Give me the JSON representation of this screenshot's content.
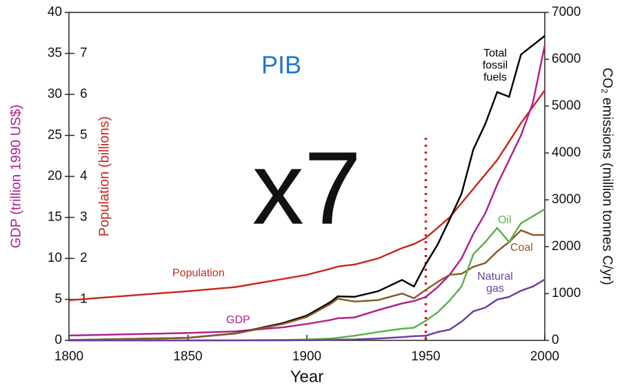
{
  "chart_data": {
    "type": "line",
    "x_label": "Year",
    "y_label": "GDP (trillion 1990 US$)",
    "y3_label": "Population (billions)",
    "y2_label": "CO₂ emissions (million tonnes C/yr)",
    "annotations": [
      "PIB",
      "x7"
    ],
    "vline": 1950,
    "xlim": [
      1800,
      2000
    ],
    "xticks": [
      1800,
      1850,
      1900,
      1950,
      2000
    ],
    "ylim": [
      0,
      40
    ],
    "yticks": [
      0,
      5,
      10,
      15,
      20,
      25,
      30,
      35,
      40
    ],
    "y3lim": [
      0,
      8
    ],
    "y3ticks": [
      1,
      2,
      3,
      4,
      5,
      6,
      7
    ],
    "y2lim": [
      0,
      7000
    ],
    "y2ticks": [
      0,
      1000,
      2000,
      3000,
      4000,
      5000,
      6000,
      7000
    ],
    "x": [
      1800,
      1850,
      1870,
      1890,
      1900,
      1910,
      1913,
      1920,
      1930,
      1940,
      1945,
      1950,
      1955,
      1960,
      1965,
      1970,
      1975,
      1980,
      1985,
      1990,
      1995,
      2000
    ],
    "series": [
      {
        "name": "Population",
        "color": "#c8281e",
        "axis": "y3",
        "values": [
          0.98,
          1.2,
          1.3,
          1.5,
          1.6,
          1.75,
          1.8,
          1.85,
          2.0,
          2.25,
          2.35,
          2.5,
          2.75,
          3.0,
          3.35,
          3.7,
          4.05,
          4.4,
          4.85,
          5.3,
          5.7,
          6.1
        ]
      },
      {
        "name": "GDP",
        "color": "#b0208f",
        "values": [
          0.6,
          0.9,
          1.1,
          1.6,
          2,
          2.5,
          2.7,
          2.8,
          3.7,
          4.5,
          4.8,
          5.3,
          6.5,
          8,
          10,
          13,
          15.5,
          19,
          22,
          25,
          29,
          36
        ]
      },
      {
        "name": "Total fossil fuels",
        "color": "#000000",
        "axis": "y2",
        "values": [
          8,
          54,
          150,
          370,
          530,
          820,
          940,
          930,
          1050,
          1290,
          1150,
          1630,
          2050,
          2580,
          3130,
          4080,
          4620,
          5300,
          5200,
          6100,
          6300,
          6500
        ]
      },
      {
        "name": "Coal",
        "color": "#8a5a2b",
        "axis": "y2",
        "values": [
          8,
          54,
          145,
          350,
          500,
          780,
          890,
          830,
          860,
          1000,
          900,
          1080,
          1250,
          1400,
          1420,
          1570,
          1650,
          1900,
          2100,
          2350,
          2250,
          2250
        ]
      },
      {
        "name": "Oil",
        "color": "#5bb04a",
        "axis": "y2",
        "values": [
          0,
          0,
          2,
          10,
          20,
          40,
          55,
          100,
          180,
          250,
          270,
          420,
          600,
          850,
          1150,
          1840,
          2100,
          2400,
          2100,
          2500,
          2650,
          2800
        ]
      },
      {
        "name": "Natural gas",
        "color": "#6a3fa0",
        "axis": "y2",
        "values": [
          0,
          0,
          0,
          0,
          3,
          10,
          15,
          20,
          40,
          70,
          90,
          100,
          180,
          230,
          400,
          620,
          700,
          870,
          930,
          1060,
          1150,
          1300
        ]
      }
    ]
  }
}
